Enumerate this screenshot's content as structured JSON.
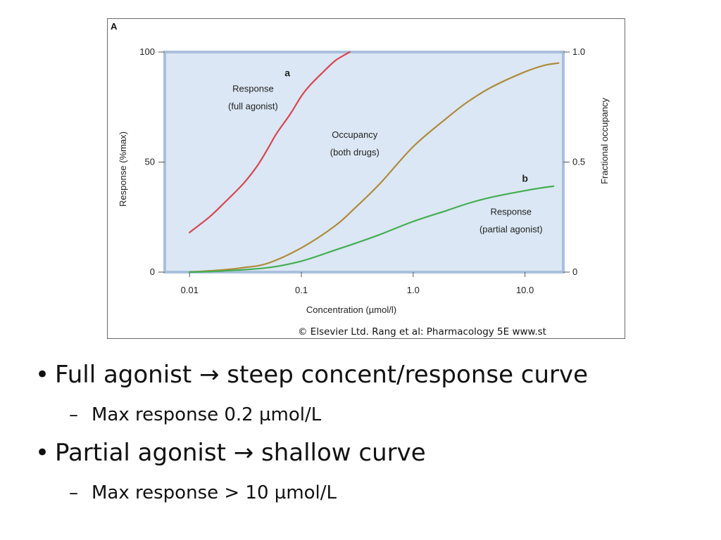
{
  "chart_data": {
    "type": "line",
    "panel_label": "A",
    "xlabel": "Concentration (µmol/l)",
    "ylabel": "Response (%max)",
    "y2label": "Fractional occupancy",
    "x_scale": "log",
    "xlim": [
      0.006,
      22
    ],
    "ylim": [
      0,
      100
    ],
    "y2lim": [
      0,
      1.0
    ],
    "x_ticks": [
      0.01,
      0.1,
      1.0,
      10.0
    ],
    "x_tick_labels": [
      "0.01",
      "0.1",
      "1.0",
      "10.0"
    ],
    "y_ticks": [
      0,
      50,
      100
    ],
    "y_tick_labels": [
      "0",
      "50",
      "100"
    ],
    "y2_ticks": [
      0,
      0.5,
      1.0
    ],
    "y2_tick_labels": [
      "0",
      "0.5",
      "1.0"
    ],
    "grid": false,
    "background_color": "#dbe7f4",
    "frame_color": "#a9c0dc",
    "series": [
      {
        "color": "#d9444f",
        "x": [
          0.01,
          0.015,
          0.02,
          0.03,
          0.04,
          0.05,
          0.06,
          0.08,
          0.1,
          0.12,
          0.15,
          0.2,
          0.25,
          0.27
        ],
        "y": [
          18,
          25,
          31,
          40,
          48,
          56,
          63,
          72,
          80,
          85,
          90,
          96,
          99,
          100
        ]
      },
      {
        "color": "#b08a3a",
        "x": [
          0.01,
          0.02,
          0.03,
          0.05,
          0.1,
          0.2,
          0.3,
          0.5,
          1.0,
          2.0,
          3.0,
          5.0,
          10.0,
          15.0,
          20.0
        ],
        "y": [
          0,
          1,
          2,
          4,
          11,
          21,
          29,
          40,
          57,
          70,
          77,
          84,
          91,
          94,
          95
        ]
      },
      {
        "color": "#43ae52",
        "x": [
          0.01,
          0.02,
          0.05,
          0.1,
          0.2,
          0.3,
          0.5,
          1.0,
          2.0,
          3.0,
          5.0,
          10.0,
          15.0,
          18.0
        ],
        "y": [
          0,
          0.5,
          2,
          5,
          10,
          13,
          17,
          23,
          28,
          31,
          34,
          37,
          38.5,
          39
        ]
      }
    ],
    "annotations": [
      {
        "text": "a",
        "bold": true,
        "x": 0.075,
        "y": 89
      },
      {
        "text": "Response",
        "x": 0.037,
        "y": 82
      },
      {
        "text": "(full agonist)",
        "x": 0.037,
        "y": 74
      },
      {
        "text": "Occupancy",
        "x": 0.3,
        "y": 61
      },
      {
        "text": "(both drugs)",
        "x": 0.3,
        "y": 53
      },
      {
        "text": "b",
        "bold": true,
        "x": 10.0,
        "y": 41
      },
      {
        "text": "Response",
        "x": 7.5,
        "y": 26
      },
      {
        "text": "(partial agonist)",
        "x": 7.5,
        "y": 18
      }
    ]
  },
  "copyright": "© Elsevier Ltd. Rang et al: Pharmacology 5E www.st",
  "bullets": [
    {
      "text": "Full agonist → steep concent/response curve",
      "sub": "Max response 0.2 µmol/L"
    },
    {
      "text": "Partial agonist → shallow curve",
      "sub": "Max response > 10 µmol/L"
    }
  ]
}
